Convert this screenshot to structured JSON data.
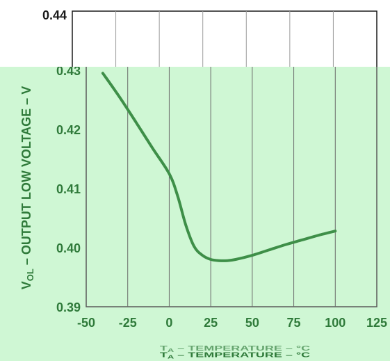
{
  "chart_data": {
    "type": "line",
    "xlabel": "TA – TEMPERATURE – °C",
    "ylabel": "VOL – OUTPUT LOW VOLTAGE – V",
    "ylabel_parts": {
      "v": "V",
      "sub": "OL",
      "rest": " – OUTPUT LOW VOLTAGE – V"
    },
    "xlabel_parts": {
      "t": "T",
      "sub": "A",
      "rest": " – TEMPERATURE – °C"
    },
    "xlim": [
      -50,
      125
    ],
    "ylim": [
      0.39,
      0.44
    ],
    "x_ticks": [
      "-50",
      "-25",
      "0",
      "25",
      "50",
      "75",
      "100",
      "125"
    ],
    "y_ticks": [
      "0.39",
      "0.40",
      "0.41",
      "0.42",
      "0.43",
      "0.44"
    ],
    "grid": true,
    "series": [
      {
        "color": "#3e8f48",
        "x": [
          -40,
          -30,
          -20,
          -10,
          0,
          5,
          10,
          15,
          20,
          25,
          30,
          35,
          40,
          50,
          60,
          70,
          80,
          90,
          100
        ],
        "y": [
          0.4295,
          0.4255,
          0.4212,
          0.4168,
          0.4125,
          0.4088,
          0.4038,
          0.4002,
          0.3987,
          0.398,
          0.3978,
          0.3978,
          0.398,
          0.3987,
          0.3996,
          0.4005,
          0.4013,
          0.4021,
          0.4028
        ]
      }
    ],
    "colors": {
      "overlay_bg": "#cff7d4",
      "curve": "#3e8f48",
      "text": "#2f7a3a",
      "top_text": "#1a1a1a",
      "grid_top": "#9a9a9a",
      "grid_bottom": "#6a6a6a"
    }
  }
}
